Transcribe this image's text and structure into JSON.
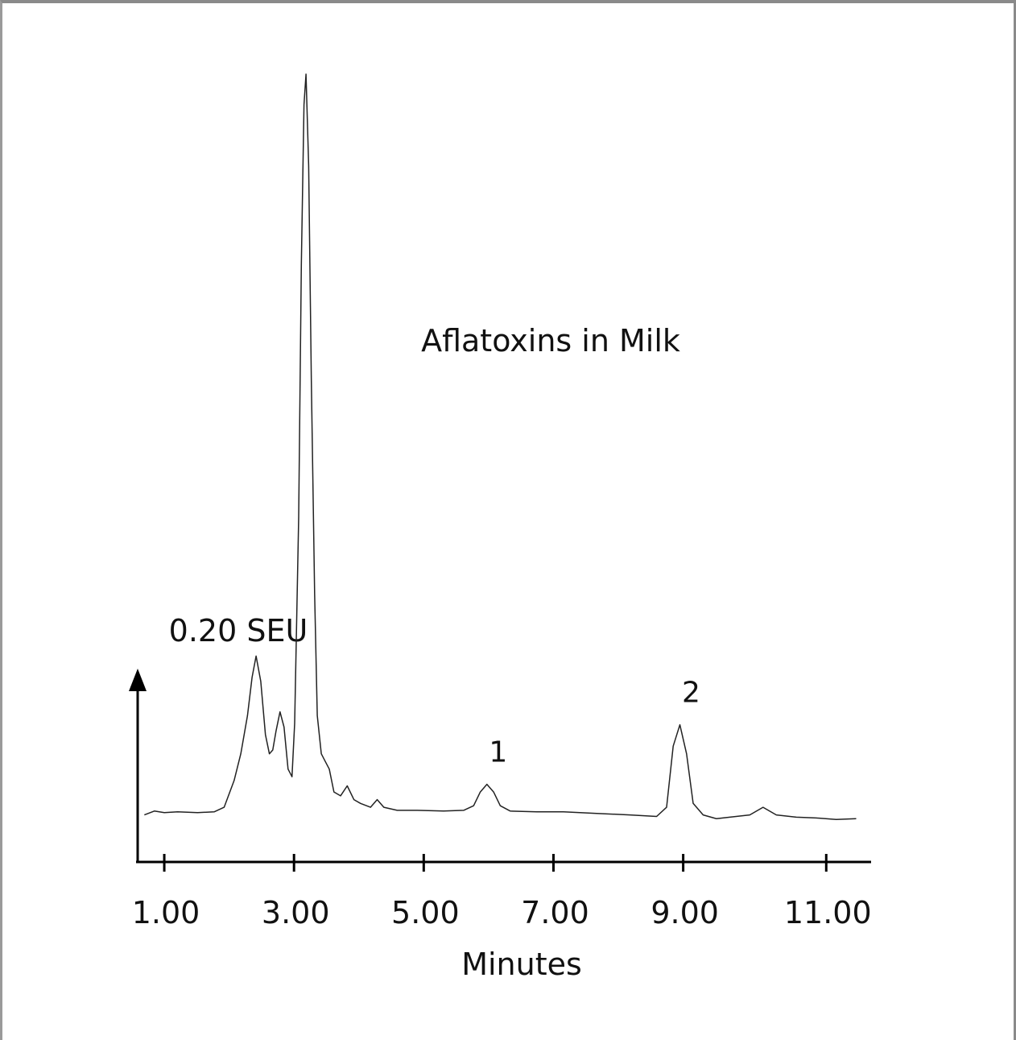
{
  "chart_data": {
    "type": "line",
    "title": "Aflatoxins in Milk",
    "xlabel": "Minutes",
    "ylabel": "",
    "scale_label": "0.20 SEU",
    "xlim": [
      0.6,
      11.6
    ],
    "ylim": [
      0,
      1
    ],
    "x_ticks": [
      {
        "label": "1.00",
        "value": 1.0
      },
      {
        "label": "3.00",
        "value": 2.95
      },
      {
        "label": "5.00",
        "value": 4.9
      },
      {
        "label": "7.00",
        "value": 6.85
      },
      {
        "label": "9.00",
        "value": 8.8
      },
      {
        "label": "11.00",
        "value": 10.95
      }
    ],
    "peak_labels": [
      {
        "label": "1",
        "x": 5.85
      },
      {
        "label": "2",
        "x": 8.75
      }
    ],
    "series": [
      {
        "values": [
          [
            0.7,
            0.03
          ],
          [
            0.85,
            0.035
          ],
          [
            1.0,
            0.033
          ],
          [
            1.2,
            0.034
          ],
          [
            1.5,
            0.033
          ],
          [
            1.75,
            0.034
          ],
          [
            1.9,
            0.04
          ],
          [
            2.05,
            0.075
          ],
          [
            2.15,
            0.11
          ],
          [
            2.25,
            0.16
          ],
          [
            2.32,
            0.21
          ],
          [
            2.38,
            0.238
          ],
          [
            2.45,
            0.205
          ],
          [
            2.52,
            0.135
          ],
          [
            2.58,
            0.11
          ],
          [
            2.63,
            0.115
          ],
          [
            2.68,
            0.14
          ],
          [
            2.74,
            0.165
          ],
          [
            2.8,
            0.145
          ],
          [
            2.86,
            0.09
          ],
          [
            2.92,
            0.08
          ],
          [
            2.96,
            0.15
          ],
          [
            3.02,
            0.42
          ],
          [
            3.06,
            0.75
          ],
          [
            3.1,
            0.96
          ],
          [
            3.13,
            1.0
          ],
          [
            3.17,
            0.88
          ],
          [
            3.21,
            0.6
          ],
          [
            3.26,
            0.32
          ],
          [
            3.3,
            0.16
          ],
          [
            3.36,
            0.11
          ],
          [
            3.42,
            0.1
          ],
          [
            3.48,
            0.09
          ],
          [
            3.55,
            0.06
          ],
          [
            3.65,
            0.055
          ],
          [
            3.75,
            0.068
          ],
          [
            3.85,
            0.05
          ],
          [
            3.95,
            0.045
          ],
          [
            4.1,
            0.04
          ],
          [
            4.2,
            0.05
          ],
          [
            4.3,
            0.04
          ],
          [
            4.5,
            0.036
          ],
          [
            4.8,
            0.036
          ],
          [
            5.2,
            0.035
          ],
          [
            5.5,
            0.036
          ],
          [
            5.65,
            0.042
          ],
          [
            5.75,
            0.06
          ],
          [
            5.85,
            0.07
          ],
          [
            5.95,
            0.06
          ],
          [
            6.05,
            0.042
          ],
          [
            6.2,
            0.035
          ],
          [
            6.6,
            0.034
          ],
          [
            7.0,
            0.034
          ],
          [
            7.5,
            0.032
          ],
          [
            8.0,
            0.03
          ],
          [
            8.4,
            0.028
          ],
          [
            8.55,
            0.04
          ],
          [
            8.65,
            0.12
          ],
          [
            8.75,
            0.148
          ],
          [
            8.85,
            0.11
          ],
          [
            8.95,
            0.045
          ],
          [
            9.1,
            0.03
          ],
          [
            9.3,
            0.025
          ],
          [
            9.5,
            0.027
          ],
          [
            9.8,
            0.03
          ],
          [
            10.0,
            0.04
          ],
          [
            10.2,
            0.03
          ],
          [
            10.5,
            0.027
          ],
          [
            10.8,
            0.026
          ],
          [
            11.1,
            0.024
          ],
          [
            11.4,
            0.025
          ]
        ]
      }
    ]
  }
}
